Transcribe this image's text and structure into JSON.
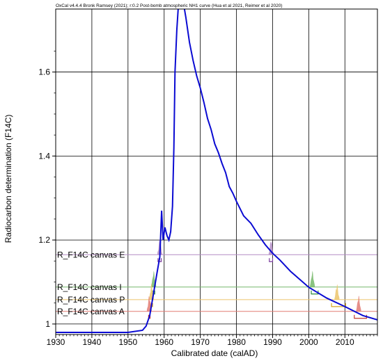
{
  "credit": "OxCal v4.4.4 Bronk Ramsey (2021); r:0.2 Post-bomb atmospheric NH1 curve (Hua et al 2021, Reimer et al 2020)",
  "chart_data": {
    "type": "line",
    "xlabel": "Calibrated date (calAD)",
    "ylabel": "Radiocarbon determination (F14C)",
    "xlim": [
      1930,
      2019
    ],
    "ylim": [
      0.975,
      1.75
    ],
    "xticks": [
      1930,
      1940,
      1950,
      1960,
      1970,
      1980,
      1990,
      2000,
      2010
    ],
    "yticks": [
      1.0,
      1.2,
      1.4,
      1.6
    ],
    "ytick_labels": [
      "1",
      "1.2",
      "1.4",
      "1.6"
    ],
    "grid": true,
    "series": [
      {
        "color": "#0a0ad2",
        "x": [
          1930,
          1950,
          1954,
          1955,
          1956,
          1957,
          1958,
          1958.8,
          1959.3,
          1959.7,
          1960.2,
          1960.8,
          1961.3,
          1961.8,
          1962.3,
          1962.7,
          1963.0,
          1963.5,
          1964.0,
          1964.5,
          1965.0,
          1965.3,
          1966.0,
          1967.0,
          1968.0,
          1969.0,
          1970.0,
          1971.0,
          1972.0,
          1973.0,
          1974.0,
          1975.0,
          1976.0,
          1977.0,
          1978.0,
          1979.0,
          1980.0,
          1982.0,
          1984.0,
          1986.0,
          1988.0,
          1990.0,
          1992.0,
          1995.0,
          2000.0,
          2005.0,
          2010.0,
          2015.0,
          2019.0
        ],
        "y": [
          0.98,
          0.98,
          0.985,
          0.995,
          1.02,
          1.07,
          1.12,
          1.16,
          1.27,
          1.2,
          1.23,
          1.21,
          1.2,
          1.22,
          1.28,
          1.42,
          1.6,
          1.7,
          1.82,
          1.88,
          1.82,
          1.78,
          1.73,
          1.67,
          1.63,
          1.59,
          1.56,
          1.53,
          1.49,
          1.46,
          1.43,
          1.41,
          1.38,
          1.36,
          1.33,
          1.31,
          1.29,
          1.26,
          1.24,
          1.21,
          1.19,
          1.17,
          1.15,
          1.125,
          1.09,
          1.06,
          1.04,
          1.02,
          1.01
        ]
      }
    ],
    "samples": [
      {
        "label": "R_F14C canvas E",
        "value": 1.165,
        "color": "#b28cc4",
        "peaks": [
          1958.8,
          1989.6
        ],
        "marker_color": "#7b3d9e",
        "markers": [
          [
            1958.3,
            1959.2
          ],
          [
            1989.1,
            1990.0
          ]
        ]
      },
      {
        "label": "R_F14C canvas I",
        "value": 1.088,
        "color": "#76b86a",
        "peaks": [
          1957.1,
          2001.0
        ],
        "marker_color": "#2e8b3e",
        "markers": [
          [
            1956.8,
            1957.4
          ],
          [
            2000.7,
            2002.6
          ]
        ]
      },
      {
        "label": "R_F14C canvas P",
        "value": 1.058,
        "color": "#ecc46a",
        "peaks": [
          1956.5,
          2007.8
        ],
        "marker_color": "#d8a51f",
        "markers": [
          [
            1956.2,
            1956.8
          ],
          [
            2006.3,
            2010.2
          ]
        ]
      },
      {
        "label": "R_F14C canvas A",
        "value": 1.03,
        "color": "#e27b74",
        "peaks": [
          1955.9,
          2013.8
        ],
        "marker_color": "#c43a2f",
        "markers": [
          [
            1955.7,
            1956.1
          ],
          [
            2012.6,
            2016.0
          ]
        ]
      }
    ]
  }
}
